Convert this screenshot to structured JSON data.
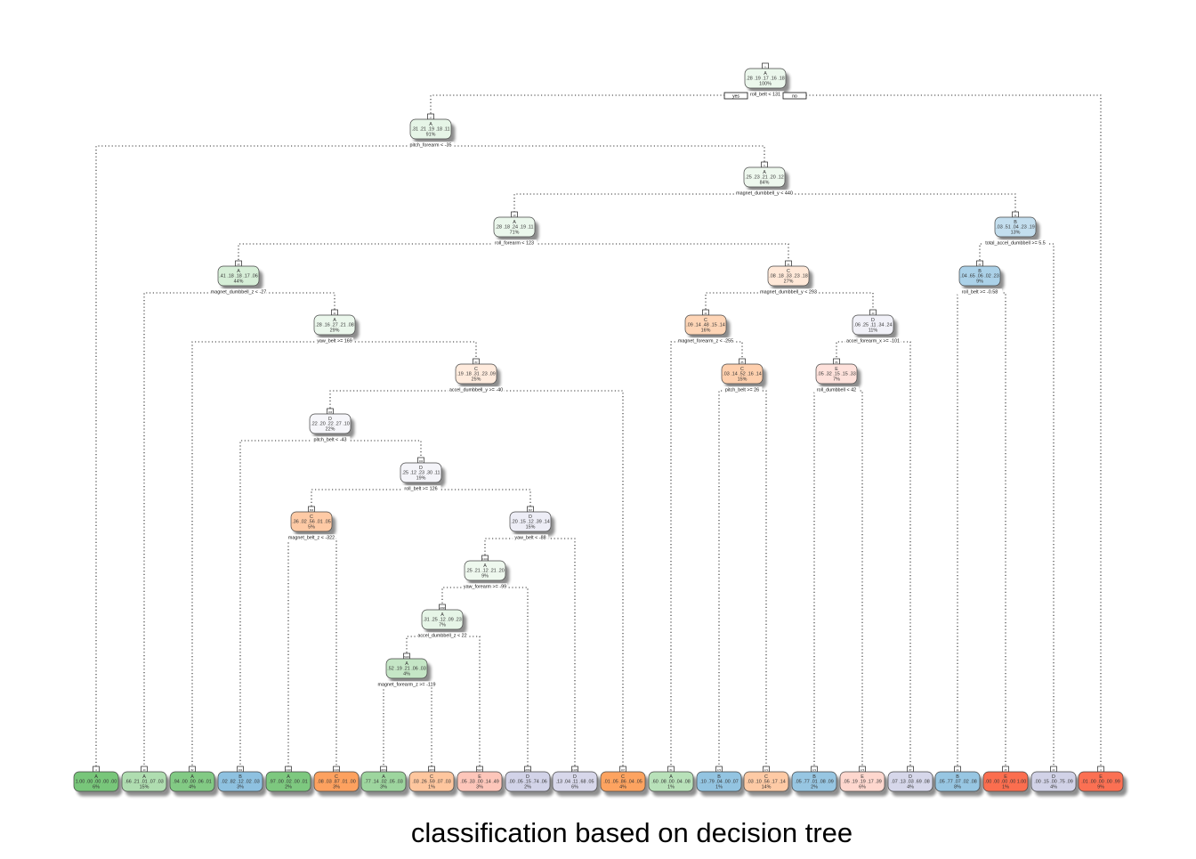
{
  "title": "classification based on decision tree",
  "branch_labels": {
    "yes": "yes",
    "no": "no"
  },
  "class_colors": {
    "A": "#74c476",
    "B": "#6baed6",
    "C": "#fd8d3c",
    "D": "#bcbddc",
    "E": "#fb6a4a"
  },
  "nodes": [
    {
      "id": "n1",
      "cls": "A",
      "probs": ".28 .19 .17 .16 .18",
      "pct": "100%",
      "split": "roll_belt < 131",
      "node_number": "1"
    },
    {
      "id": "n2",
      "cls": "A",
      "probs": ".31 .21 .19 .18 .11",
      "pct": "91%",
      "split": "pitch_forearm < -35",
      "node_number": "2"
    },
    {
      "id": "n3",
      "cls": "A",
      "probs": ".25 .23 .21 .20 .12",
      "pct": "84%",
      "split": "magnet_dumbbell_y < 440",
      "node_number": "5"
    },
    {
      "id": "n4",
      "cls": "A",
      "probs": ".28 .18 .24 .19 .11",
      "pct": "71%",
      "split": "roll_forearm < 123",
      "node_number": "10"
    },
    {
      "id": "n5",
      "cls": "B",
      "probs": ".03 .51 .04 .23 .19",
      "pct": "13%",
      "split": "total_accel_dumbbell >= 5.5",
      "node_number": "11"
    },
    {
      "id": "n6",
      "cls": "A",
      "probs": ".41 .18 .18 .17 .06",
      "pct": "44%",
      "split": "magnet_dumbbell_z < -27",
      "node_number": "20"
    },
    {
      "id": "n7",
      "cls": "C",
      "probs": ".08 .18 .33 .23 .18",
      "pct": "27%",
      "split": "magnet_dumbbell_y < 293",
      "node_number": "21"
    },
    {
      "id": "n8",
      "cls": "B",
      "probs": ".04 .65 .06 .02 .23",
      "pct": "9%",
      "split": "roll_belt >= -0.58",
      "node_number": "22"
    },
    {
      "id": "n9",
      "cls": "A",
      "probs": ".28 .16 .27 .21 .08",
      "pct": "29%",
      "split": "yaw_belt >= 169",
      "node_number": "41"
    },
    {
      "id": "n10",
      "cls": "C",
      "probs": ".09 .14 .48 .15 .14",
      "pct": "16%",
      "split": "magnet_forearm_z < -255",
      "node_number": "42"
    },
    {
      "id": "n11",
      "cls": "D",
      "probs": ".06 .25 .11 .34 .24",
      "pct": "11%",
      "split": "accel_forearm_x >= -101",
      "node_number": "43"
    },
    {
      "id": "n12",
      "cls": "C",
      "probs": ".19 .18 .31 .23 .09",
      "pct": "25%",
      "split": "accel_dumbbell_y >= -40",
      "node_number": "83"
    },
    {
      "id": "n13",
      "cls": "C",
      "probs": ".03 .14 .52 .16 .14",
      "pct": "15%",
      "split": "pitch_belt >= 26",
      "node_number": "85"
    },
    {
      "id": "n14",
      "cls": "E",
      "probs": ".05 .32 .15 .15 .33",
      "pct": "7%",
      "split": "roll_dumbbell < 42",
      "node_number": "86"
    },
    {
      "id": "n15",
      "cls": "D",
      "probs": ".22 .20 .22 .27 .10",
      "pct": "22%",
      "split": "pitch_belt < -43",
      "node_number": "166"
    },
    {
      "id": "n16",
      "cls": "D",
      "probs": ".25 .12 .23 .30 .11",
      "pct": "19%",
      "split": "roll_belt >= 126",
      "node_number": "333"
    },
    {
      "id": "n17",
      "cls": "C",
      "probs": ".36 .02 .56 .01 .05",
      "pct": "5%",
      "split": "magnet_belt_z < -322",
      "node_number": "666"
    },
    {
      "id": "n18",
      "cls": "D",
      "probs": ".20 .15 .12 .39 .14",
      "pct": "15%",
      "split": "yaw_belt < -88",
      "node_number": "667"
    },
    {
      "id": "n19",
      "cls": "A",
      "probs": ".25 .21 .12 .21 .20",
      "pct": "9%",
      "split": "yaw_forearm >= -99",
      "node_number": "1334"
    },
    {
      "id": "n20",
      "cls": "A",
      "probs": ".31 .25 .12 .09 .23",
      "pct": "7%",
      "split": "accel_dumbbell_z < 22",
      "node_number": "2668"
    },
    {
      "id": "n21",
      "cls": "A",
      "probs": ".52 .19 .21 .06 .03",
      "pct": "4%",
      "split": "magnet_forearm_z >= -119",
      "node_number": "5336"
    }
  ],
  "leaves": [
    {
      "id": "l1",
      "cls": "A",
      "probs": "1.00 .00 .00 .00 .00",
      "pct": "6%",
      "node_number": "4"
    },
    {
      "id": "l2",
      "cls": "A",
      "probs": ".66 .21 .01 .07 .03",
      "pct": "15%",
      "node_number": "40"
    },
    {
      "id": "l3",
      "cls": "A",
      "probs": ".94 .00 .00 .06 .01",
      "pct": "4%",
      "node_number": "82"
    },
    {
      "id": "l4",
      "cls": "B",
      "probs": ".02 .82 .12 .02 .03",
      "pct": "3%",
      "node_number": "332"
    },
    {
      "id": "l5",
      "cls": "A",
      "probs": ".97 .00 .02 .00 .01",
      "pct": "2%",
      "node_number": "1332"
    },
    {
      "id": "l6",
      "cls": "C",
      "probs": ".08 .03 .87 .01 .00",
      "pct": "3%",
      "node_number": "1333"
    },
    {
      "id": "l7",
      "cls": "A",
      "probs": ".77 .14 .02 .05 .03",
      "pct": "3%",
      "node_number": "10672"
    },
    {
      "id": "l8",
      "cls": "C",
      "probs": ".03 .26 .59 .07 .03",
      "pct": "1%",
      "node_number": "10673"
    },
    {
      "id": "l9",
      "cls": "E",
      "probs": ".05 .33 .00 .14 .49",
      "pct": "3%",
      "node_number": "5337"
    },
    {
      "id": "l10",
      "cls": "D",
      "probs": ".00 .05 .15 .74 .06",
      "pct": "2%",
      "node_number": "2669"
    },
    {
      "id": "l11",
      "cls": "D",
      "probs": ".13 .04 .11 .68 .05",
      "pct": "6%",
      "node_number": "1335"
    },
    {
      "id": "l12",
      "cls": "C",
      "probs": ".01 .05 .86 .04 .05",
      "pct": "4%",
      "node_number": "167"
    },
    {
      "id": "l13",
      "cls": "A",
      "probs": ".60 .08 .00 .04 .08",
      "pct": "1%",
      "node_number": "84"
    },
    {
      "id": "l14",
      "cls": "B",
      "probs": ".10 .79 .04 .00 .07",
      "pct": "1%",
      "node_number": "170"
    },
    {
      "id": "l15",
      "cls": "C",
      "probs": ".03 .10 .56 .17 .14",
      "pct": "14%",
      "node_number": "171"
    },
    {
      "id": "l16",
      "cls": "B",
      "probs": ".05 .77 .01 .08 .09",
      "pct": "2%",
      "node_number": "172"
    },
    {
      "id": "l17",
      "cls": "E",
      "probs": ".05 .19 .19 .17 .39",
      "pct": "6%",
      "node_number": "173"
    },
    {
      "id": "l18",
      "cls": "D",
      "probs": ".07 .13 .03 .69 .08",
      "pct": "4%",
      "node_number": "87"
    },
    {
      "id": "l19",
      "cls": "B",
      "probs": ".05 .77 .07 .02 .08",
      "pct": "8%",
      "node_number": "44"
    },
    {
      "id": "l20",
      "cls": "E",
      "probs": ".00 .00 .00 .00 1.00",
      "pct": "1%",
      "node_number": "45"
    },
    {
      "id": "l21",
      "cls": "D",
      "probs": ".00 .15 .00 .75 .09",
      "pct": "4%",
      "node_number": "23"
    },
    {
      "id": "l22",
      "cls": "E",
      "probs": ".01 .00 .00 .00 .99",
      "pct": "9%",
      "node_number": "3"
    }
  ]
}
